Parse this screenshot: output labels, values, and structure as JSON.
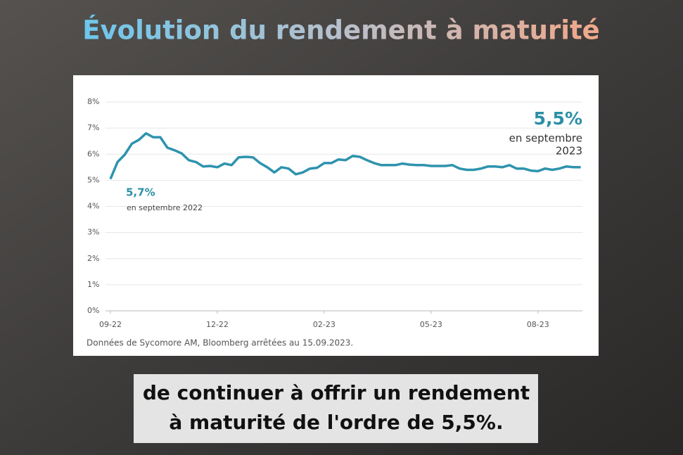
{
  "title": "Évolution du rendement à maturité",
  "chart_data": {
    "type": "line",
    "categories": [
      "09-22",
      null,
      null,
      null,
      null,
      null,
      null,
      null,
      null,
      null,
      null,
      null,
      null,
      null,
      null,
      "12-22",
      null,
      null,
      null,
      null,
      null,
      null,
      null,
      null,
      null,
      null,
      null,
      null,
      null,
      null,
      "02-23",
      null,
      null,
      null,
      null,
      null,
      null,
      null,
      null,
      null,
      null,
      null,
      null,
      null,
      null,
      "05-23",
      null,
      null,
      null,
      null,
      null,
      null,
      null,
      null,
      null,
      null,
      null,
      null,
      null,
      null,
      "08-23",
      null,
      null,
      null,
      null,
      null,
      null
    ],
    "values": [
      5.05,
      5.7,
      5.98,
      6.4,
      6.55,
      6.8,
      6.65,
      6.65,
      6.25,
      6.15,
      6.03,
      5.77,
      5.7,
      5.53,
      5.55,
      5.5,
      5.64,
      5.58,
      5.88,
      5.9,
      5.88,
      5.66,
      5.5,
      5.3,
      5.5,
      5.45,
      5.23,
      5.3,
      5.45,
      5.48,
      5.66,
      5.66,
      5.8,
      5.77,
      5.93,
      5.9,
      5.77,
      5.66,
      5.58,
      5.58,
      5.58,
      5.64,
      5.6,
      5.58,
      5.58,
      5.55,
      5.55,
      5.55,
      5.58,
      5.45,
      5.4,
      5.4,
      5.45,
      5.53,
      5.53,
      5.5,
      5.58,
      5.45,
      5.45,
      5.37,
      5.35,
      5.45,
      5.4,
      5.45,
      5.53,
      5.5,
      5.5
    ],
    "color": "#2e93ae",
    "ylim": [
      0,
      8
    ],
    "yticks": [
      {
        "value": 0,
        "label": "0%"
      },
      {
        "value": 1,
        "label": "1%"
      },
      {
        "value": 2,
        "label": "2%"
      },
      {
        "value": 3,
        "label": "3%"
      },
      {
        "value": 4,
        "label": "4%"
      },
      {
        "value": 5,
        "label": "5%"
      },
      {
        "value": 6,
        "label": "6%"
      },
      {
        "value": 7,
        "label": "7%"
      },
      {
        "value": 8,
        "label": "8%"
      }
    ],
    "grid": true,
    "annotations": [
      {
        "value": "5,7%",
        "note": [
          "en septembre 2022"
        ]
      },
      {
        "value": "5,5%",
        "note": [
          "en septembre",
          "2023"
        ]
      }
    ],
    "source": "Données de Sycomore AM, Bloomberg arrêtées au 15.09.2023."
  },
  "caption": [
    "de continuer à offrir un rendement",
    "à maturité de l'ordre de 5,5%."
  ]
}
